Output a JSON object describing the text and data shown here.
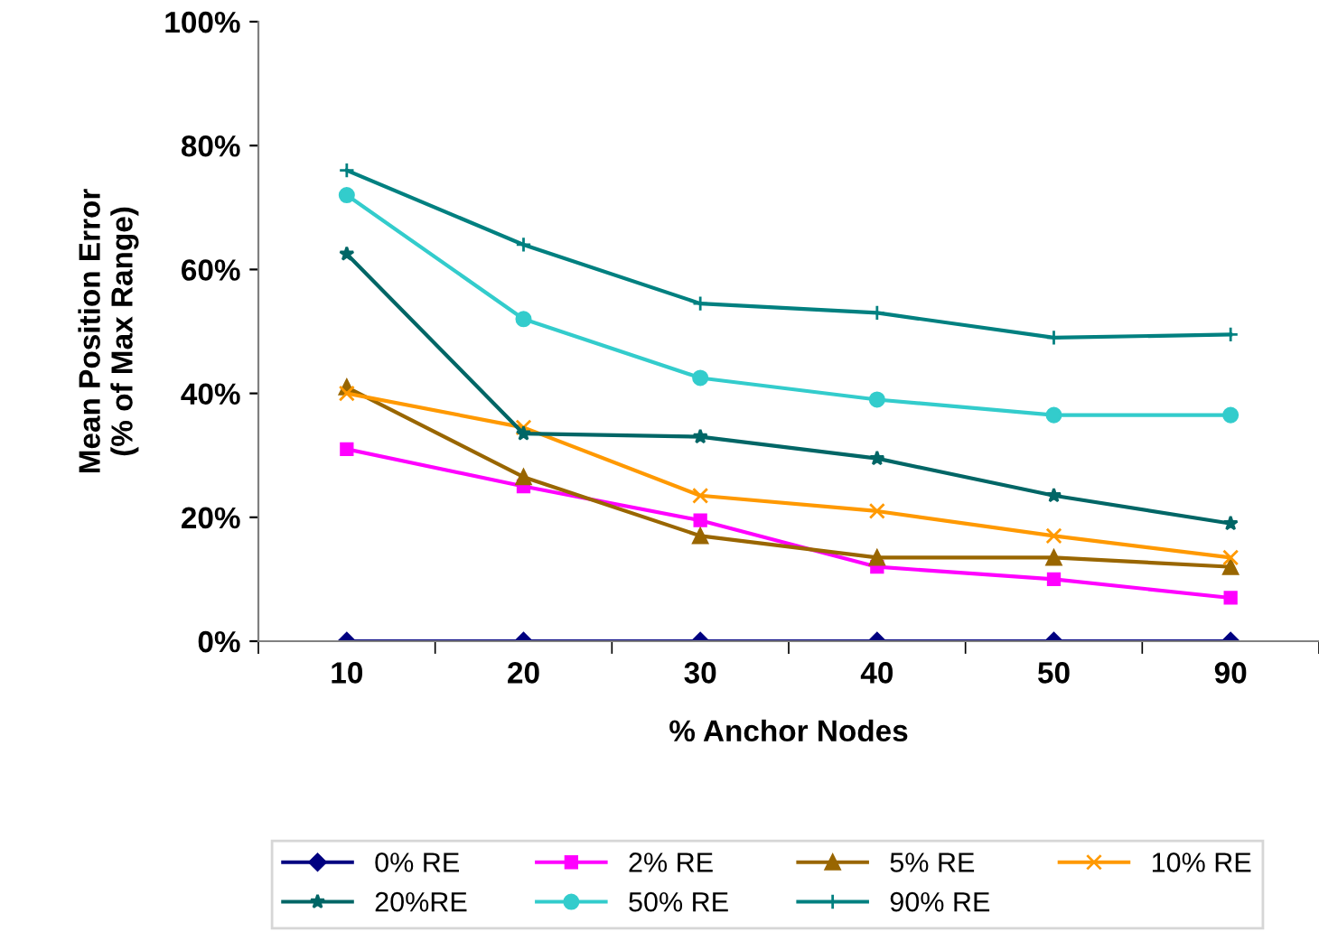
{
  "chart_data": {
    "type": "line",
    "xlabel": "% Anchor Nodes",
    "ylabel": "Mean Position Error\n(% of Max Range)",
    "categories": [
      "10",
      "20",
      "30",
      "40",
      "50",
      "90"
    ],
    "ylim": [
      0,
      100
    ],
    "yticks": [
      {
        "value": 0,
        "label": "0%"
      },
      {
        "value": 20,
        "label": "20%"
      },
      {
        "value": 40,
        "label": "40%"
      },
      {
        "value": 60,
        "label": "60%"
      },
      {
        "value": 80,
        "label": "80%"
      },
      {
        "value": 100,
        "label": "100%"
      }
    ],
    "grid": false,
    "legend": "bottom",
    "line_style": "solid",
    "series": [
      {
        "name": "0% RE",
        "color": "#000080",
        "marker": "diamond",
        "values": [
          0,
          0,
          0,
          0,
          0,
          0
        ]
      },
      {
        "name": "2% RE",
        "color": "#ff00ff",
        "marker": "square",
        "values": [
          31,
          25,
          19.5,
          12,
          10,
          7
        ]
      },
      {
        "name": "5% RE",
        "color": "#996600",
        "marker": "triangle",
        "values": [
          41,
          26.5,
          17,
          13.5,
          13.5,
          12
        ]
      },
      {
        "name": "10% RE",
        "color": "#ff9900",
        "marker": "cross",
        "values": [
          40,
          34.5,
          23.5,
          21,
          17,
          13.5
        ]
      },
      {
        "name": "20%RE",
        "color": "#006666",
        "marker": "star",
        "values": [
          62.5,
          33.5,
          33,
          29.5,
          23.5,
          19
        ]
      },
      {
        "name": "50% RE",
        "color": "#33cccc",
        "marker": "circle",
        "values": [
          72,
          52,
          42.5,
          39,
          36.5,
          36.5
        ]
      },
      {
        "name": "90% RE",
        "color": "#008080",
        "marker": "plus",
        "values": [
          76,
          64,
          54.5,
          53,
          49,
          49.5
        ]
      }
    ]
  }
}
